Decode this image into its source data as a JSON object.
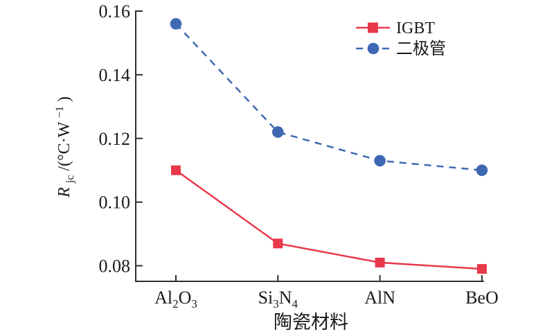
{
  "chart_data": {
    "type": "line",
    "title": "",
    "xlabel": "陶瓷材料",
    "ylabel": "Rjc/(°C·W⁻¹)",
    "ylabel_parts": {
      "symbol": "R",
      "symbol_sub": "jc",
      "unit_prefix": "/(°C·W",
      "unit_sup": "−1",
      "unit_suffix": ")"
    },
    "categories": [
      "Al2O3",
      "Si3N4",
      "AlN",
      "BeO"
    ],
    "series": [
      {
        "name": "IGBT",
        "marker": "square",
        "line_style": "solid",
        "color": "#e8394a",
        "values": [
          0.11,
          0.087,
          0.081,
          0.079
        ]
      },
      {
        "name": "二极管",
        "marker": "circle",
        "line_style": "dashed",
        "color": "#3e68b2",
        "values": [
          0.156,
          0.122,
          0.113,
          0.11
        ]
      }
    ],
    "y_ticks": [
      "0.16",
      "0.14",
      "0.12",
      "0.10",
      "0.08"
    ],
    "ylim": [
      0.075,
      0.16
    ],
    "grid": false,
    "legend_position": "upper-right",
    "axis_color": "#2e2e2e"
  }
}
